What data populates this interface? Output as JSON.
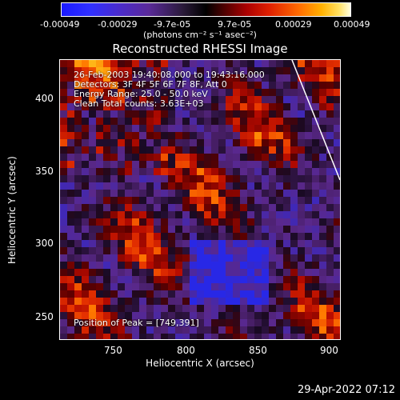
{
  "colorbar": {
    "ticks": [
      "-0.00049",
      "-0.00029",
      "-9.7e-05",
      "9.7e-05",
      "0.00029",
      "0.00049"
    ],
    "units": "(photons cm⁻² s⁻¹ asec⁻²)",
    "colors": [
      "#1a1aff",
      "#5a2a9a",
      "#000000",
      "#aa0000",
      "#ff6a00",
      "#ffffe0"
    ]
  },
  "title": "Reconstructed RHESSI Image",
  "overlay": {
    "line1": "26-Feb-2003 19:40:08.000 to 19:43:16.000",
    "line2": "Detectors: 3F 4F 5F 6F 7F 8F, Att 0",
    "line3": "Energy Range: 25.0 - 50.0 keV",
    "line4": "Clean     Total counts: 3.63E+03",
    "peak": "Position of Peak = [749,391]"
  },
  "axes": {
    "xlabel": "Heliocentric X (arcsec)",
    "ylabel": "Heliocentric Y (arcsec)",
    "xticks": [
      "750",
      "800",
      "850",
      "900"
    ],
    "yticks": [
      "400",
      "350",
      "300",
      "250"
    ]
  },
  "footer_date": "29-Apr-2022 07:12"
}
